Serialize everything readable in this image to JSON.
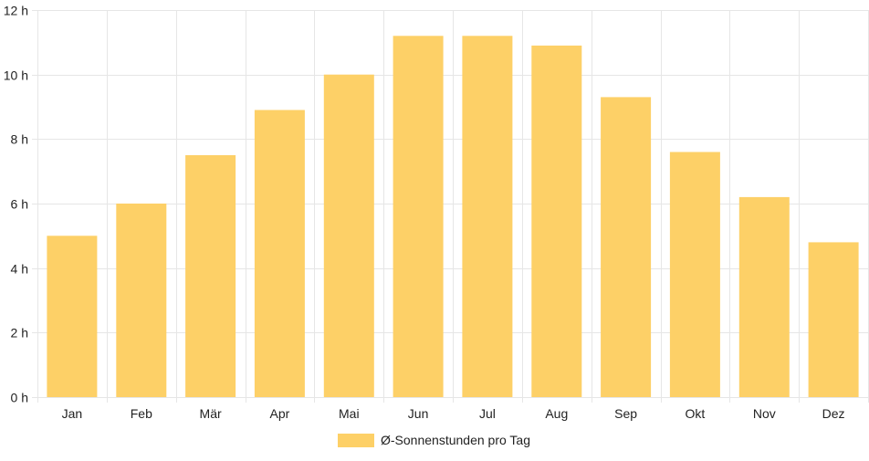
{
  "chart_data": {
    "type": "bar",
    "categories": [
      "Jan",
      "Feb",
      "Mär",
      "Apr",
      "Mai",
      "Jun",
      "Jul",
      "Aug",
      "Sep",
      "Okt",
      "Nov",
      "Dez"
    ],
    "series": [
      {
        "name": "Ø-Sonnenstunden pro Tag",
        "values": [
          5.0,
          6.0,
          7.5,
          8.9,
          10.0,
          11.2,
          11.2,
          10.9,
          9.3,
          7.6,
          6.2,
          4.8
        ],
        "color": "#fdd067"
      }
    ],
    "ylim": [
      0,
      12
    ],
    "yticks": [
      0,
      2,
      4,
      6,
      8,
      10,
      12
    ],
    "ytick_suffix": " h",
    "grid": true,
    "legend_position": "bottom",
    "gridline_color": "#e6e6e6"
  }
}
